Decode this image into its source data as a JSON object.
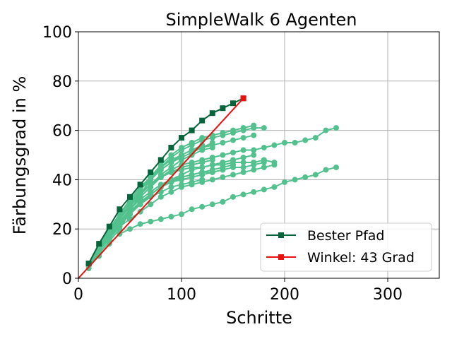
{
  "chart_data": {
    "type": "line",
    "title": "SimpleWalk 6 Agenten",
    "xlabel": "Schritte",
    "ylabel": "Färbungsgrad in %",
    "xlim": [
      0,
      350
    ],
    "ylim": [
      0,
      100
    ],
    "xticks": [
      0,
      100,
      200,
      300
    ],
    "yticks": [
      0,
      20,
      40,
      60,
      80,
      100
    ],
    "grid": true,
    "legend_position": "bottom-right",
    "colors": {
      "runs": "#52c18e",
      "best": "#06643a",
      "angle": "#e8110f"
    },
    "series": [
      {
        "name": "Bester Pfad",
        "marker": "square",
        "x": [
          10,
          20,
          30,
          40,
          50,
          60,
          70,
          80,
          90,
          100,
          110,
          120,
          130,
          140,
          150,
          160
        ],
        "y": [
          6,
          14,
          21,
          28,
          33,
          38,
          43,
          48,
          53,
          57,
          60,
          64,
          67,
          69,
          71,
          73
        ]
      },
      {
        "name": "Winkel: 43 Grad",
        "marker": "square",
        "x": [
          0,
          160
        ],
        "y": [
          0,
          73
        ]
      }
    ],
    "runs": [
      {
        "x": [
          10,
          20,
          30,
          40,
          50,
          60,
          70,
          80,
          90,
          100,
          110,
          120,
          130,
          140,
          150,
          160,
          170,
          180
        ],
        "y": [
          4,
          10,
          15,
          20,
          27,
          34,
          40,
          45,
          49,
          52,
          54,
          56,
          57,
          58,
          59,
          60,
          61,
          61
        ]
      },
      {
        "x": [
          10,
          20,
          30,
          40,
          50,
          60,
          70,
          80,
          90,
          100,
          110,
          120,
          130,
          140,
          150,
          160,
          170
        ],
        "y": [
          5,
          12,
          18,
          24,
          30,
          36,
          41,
          46,
          50,
          53,
          55,
          57,
          58,
          59,
          60,
          61,
          62
        ]
      },
      {
        "x": [
          10,
          20,
          30,
          40,
          50,
          60,
          70,
          80,
          90,
          100,
          110,
          120,
          130,
          140,
          150,
          160,
          170
        ],
        "y": [
          6,
          13,
          20,
          26,
          31,
          36,
          40,
          44,
          47,
          49,
          51,
          53,
          54,
          55,
          56,
          57,
          58
        ]
      },
      {
        "x": [
          10,
          20,
          30,
          40,
          50,
          60,
          70,
          80,
          90,
          100,
          110,
          120,
          130,
          140,
          150,
          160,
          170,
          180,
          190,
          200,
          210,
          220,
          230,
          240,
          250
        ],
        "y": [
          5,
          11,
          17,
          23,
          28,
          33,
          37,
          41,
          44,
          46,
          47,
          48,
          49,
          50,
          51,
          52,
          52,
          53,
          54,
          55,
          55,
          56,
          57,
          60,
          61
        ]
      },
      {
        "x": [
          10,
          20,
          30,
          40,
          50,
          60,
          70,
          80,
          90,
          100,
          110,
          120,
          130,
          140,
          150,
          160,
          170,
          180,
          190
        ],
        "y": [
          5,
          12,
          18,
          24,
          29,
          34,
          38,
          41,
          43,
          44,
          45,
          45,
          46,
          46,
          47,
          47,
          47,
          48,
          47
        ]
      },
      {
        "x": [
          10,
          20,
          30,
          40,
          50,
          60,
          70,
          80,
          90,
          100,
          110,
          120,
          130,
          140,
          150,
          160,
          170,
          180
        ],
        "y": [
          6,
          12,
          18,
          23,
          28,
          32,
          35,
          38,
          40,
          41,
          42,
          43,
          43,
          44,
          45,
          45,
          46,
          47
        ]
      },
      {
        "x": [
          10,
          20,
          30,
          40,
          50,
          60,
          70,
          80,
          90,
          100,
          110,
          120,
          130,
          140,
          150
        ],
        "y": [
          5,
          11,
          17,
          22,
          26,
          30,
          34,
          37,
          39,
          41,
          42,
          43,
          44,
          45,
          46
        ]
      },
      {
        "x": [
          10,
          20,
          30,
          40,
          50,
          60,
          70,
          80,
          90,
          100,
          110,
          120,
          130,
          140,
          150,
          160,
          170,
          180,
          190
        ],
        "y": [
          6,
          12,
          17,
          21,
          24,
          27,
          30,
          33,
          35,
          37,
          38,
          39,
          40,
          41,
          42,
          43,
          44,
          45,
          46
        ]
      },
      {
        "x": [
          10,
          20,
          30,
          40,
          50,
          60,
          70,
          80,
          90,
          100,
          110,
          120,
          130,
          140,
          150,
          160,
          170,
          180,
          190,
          200,
          210,
          220,
          230,
          240,
          250
        ],
        "y": [
          5,
          9,
          14,
          18,
          20,
          22,
          23,
          24,
          25,
          26,
          28,
          29,
          30,
          31,
          33,
          34,
          35,
          36,
          37,
          39,
          40,
          41,
          42,
          44,
          45
        ]
      },
      {
        "x": [
          10,
          20,
          30,
          40,
          50,
          60,
          70,
          80,
          90,
          100,
          110,
          120,
          130,
          140
        ],
        "y": [
          5,
          11,
          17,
          22,
          27,
          31,
          34,
          37,
          39,
          40,
          41,
          42,
          43,
          44
        ]
      },
      {
        "x": [
          10,
          20,
          30,
          40,
          50,
          60,
          70,
          80,
          90,
          100,
          110,
          120,
          130
        ],
        "y": [
          6,
          13,
          19,
          25,
          30,
          34,
          38,
          42,
          45,
          48,
          50,
          52,
          53
        ]
      },
      {
        "x": [
          10,
          20,
          30,
          40,
          50,
          60,
          70,
          80,
          90,
          100,
          110,
          120,
          130
        ],
        "y": [
          6,
          13,
          19,
          25,
          30,
          35,
          38,
          41,
          43,
          45,
          46,
          47,
          48
        ]
      },
      {
        "x": [
          10,
          20,
          30,
          40,
          50,
          60,
          70,
          80,
          90,
          100,
          110,
          120
        ],
        "y": [
          6,
          13,
          20,
          26,
          31,
          36,
          40,
          44,
          47,
          50,
          52,
          54
        ]
      },
      {
        "x": [
          10,
          20,
          30,
          40,
          50,
          60,
          70,
          80,
          90,
          100,
          110,
          120
        ],
        "y": [
          5,
          12,
          18,
          23,
          27,
          30,
          33,
          35,
          37,
          38,
          39,
          40
        ]
      },
      {
        "x": [
          10,
          20,
          30,
          40,
          50,
          60,
          70,
          80,
          90,
          100,
          110,
          120,
          130
        ],
        "y": [
          6,
          13,
          20,
          26,
          32,
          37,
          41,
          45,
          48,
          50,
          52,
          53,
          55
        ]
      },
      {
        "x": [
          10,
          20,
          30,
          40,
          50,
          60,
          70,
          80,
          90,
          100,
          110,
          120,
          130,
          140,
          150,
          160,
          170
        ],
        "y": [
          5,
          11,
          16,
          21,
          26,
          30,
          34,
          37,
          40,
          42,
          44,
          45,
          46,
          47,
          48,
          49,
          50
        ]
      }
    ]
  }
}
